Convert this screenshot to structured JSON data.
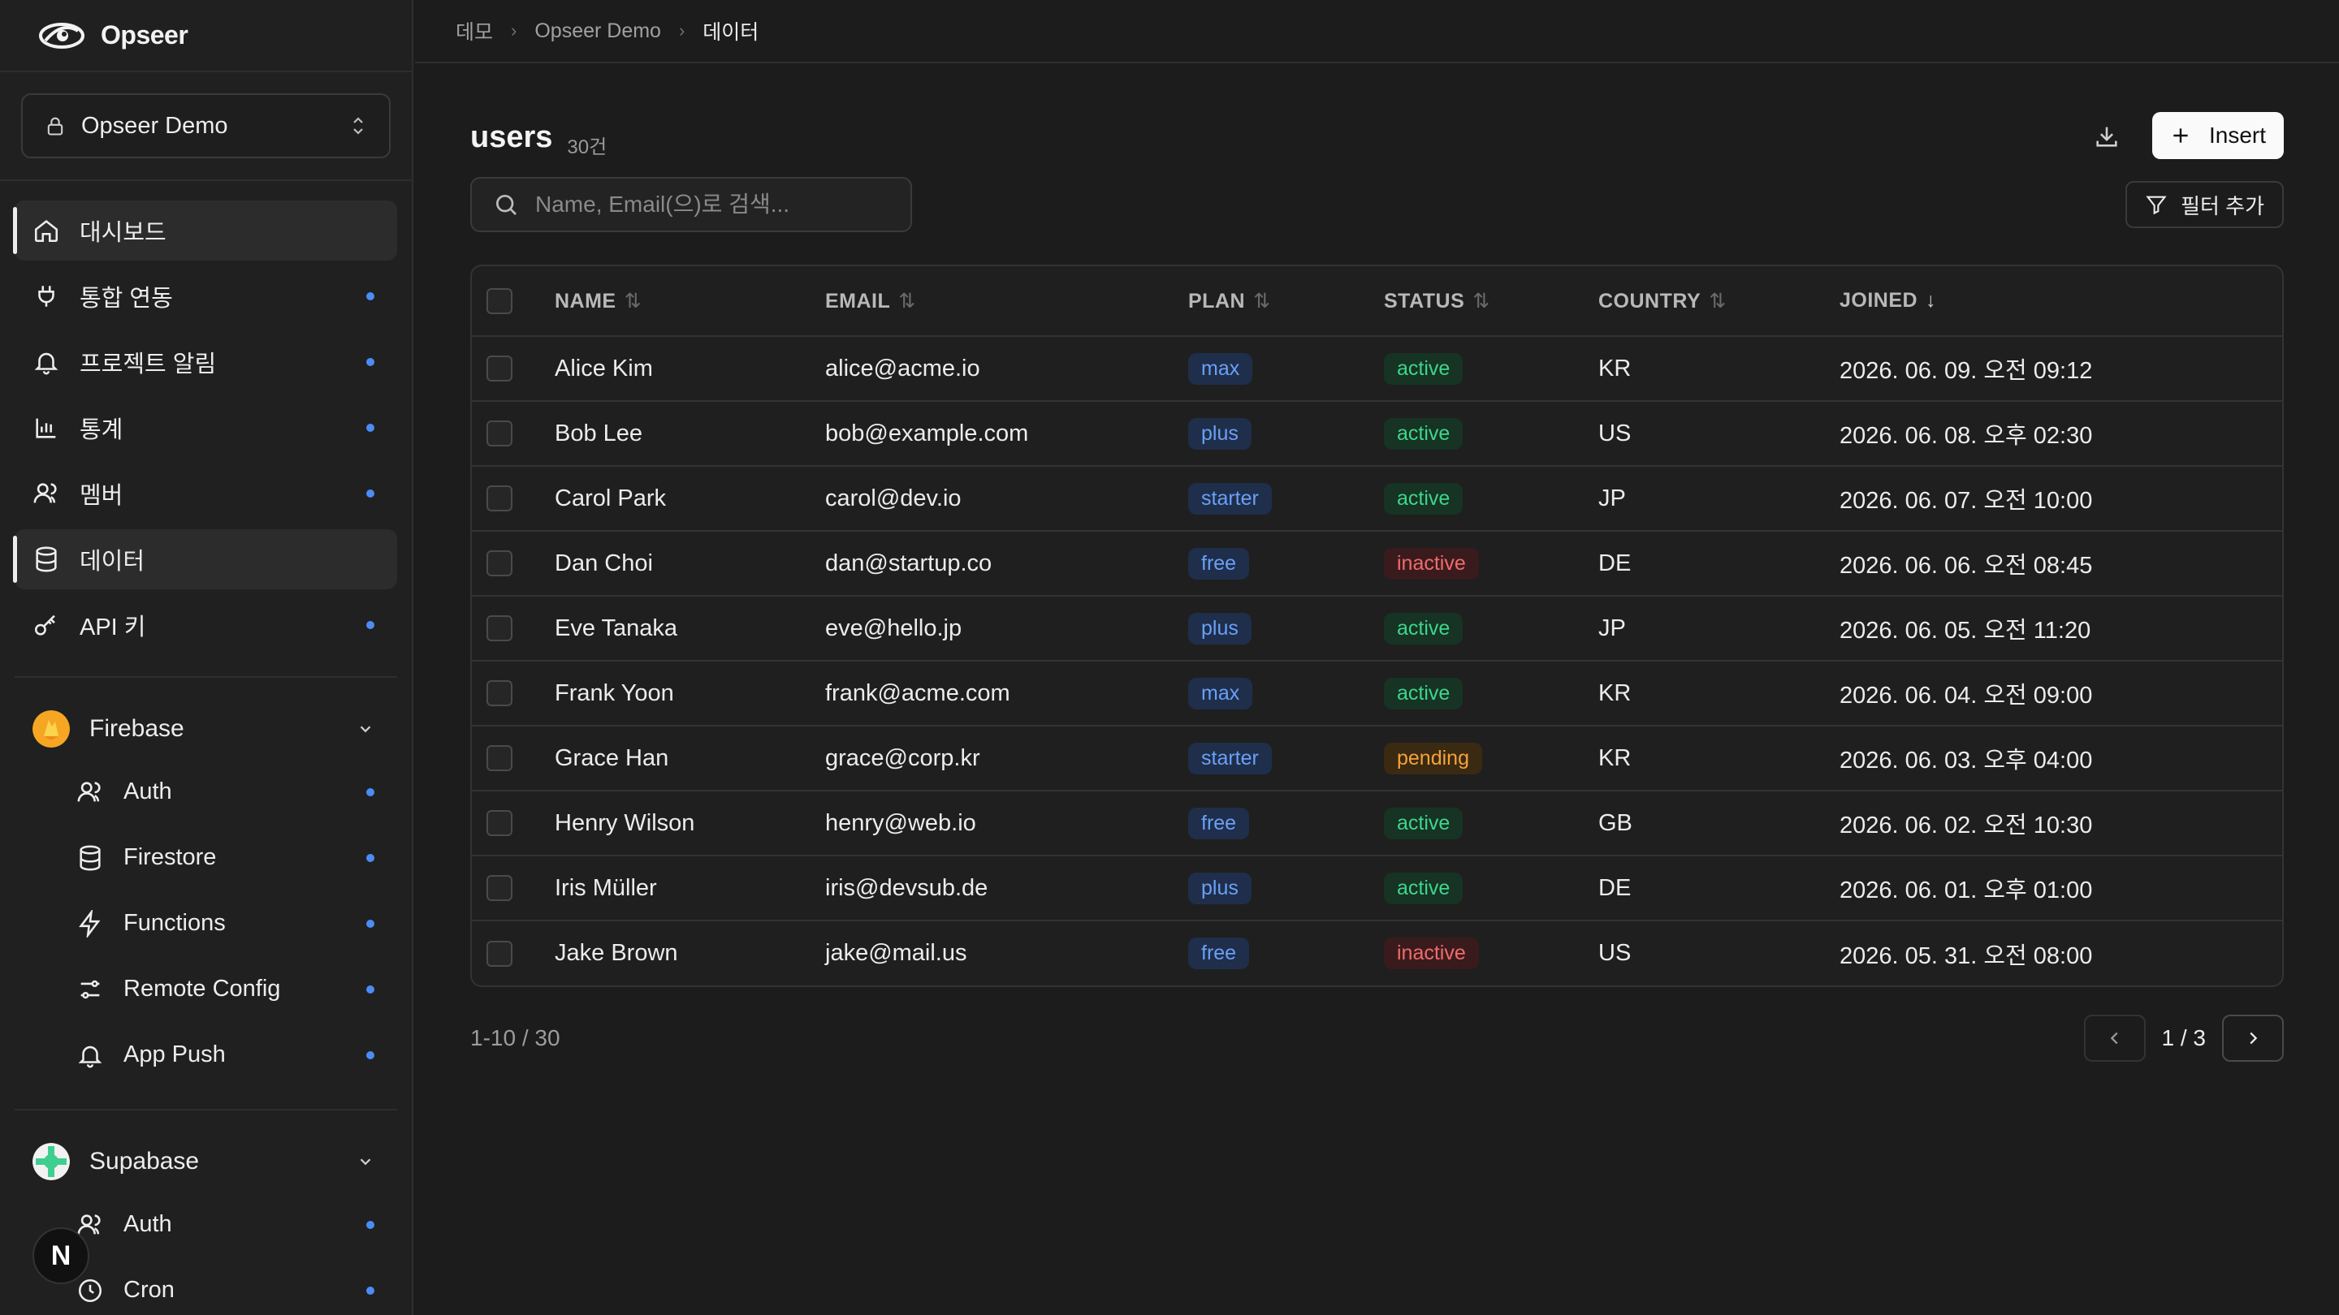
{
  "brand": {
    "name": "Opseer"
  },
  "project": {
    "name": "Opseer Demo"
  },
  "nav": [
    {
      "label": "대시보드",
      "active": true
    },
    {
      "label": "통합 연동"
    },
    {
      "label": "프로젝트 알림"
    },
    {
      "label": "통계"
    },
    {
      "label": "멤버"
    },
    {
      "label": "데이터",
      "active": true
    },
    {
      "label": "API 키"
    }
  ],
  "firebase": {
    "label": "Firebase",
    "items": [
      {
        "label": "Auth"
      },
      {
        "label": "Firestore"
      },
      {
        "label": "Functions"
      },
      {
        "label": "Remote Config"
      },
      {
        "label": "App Push"
      }
    ]
  },
  "supabase": {
    "label": "Supabase",
    "items": [
      {
        "label": "Auth"
      },
      {
        "label": "Cron"
      }
    ]
  },
  "floating_badge": "N",
  "breadcrumb": [
    "데모",
    "Opseer Demo",
    "데이터"
  ],
  "table_title": "users",
  "table_count": "30건",
  "insert_label": "Insert",
  "search": {
    "placeholder": "Name, Email(으)로 검색..."
  },
  "filter_label": "필터 추가",
  "columns": {
    "name": "NAME",
    "email": "EMAIL",
    "plan": "PLAN",
    "status": "STATUS",
    "country": "COUNTRY",
    "joined": "JOINED"
  },
  "rows": [
    {
      "name": "Alice Kim",
      "email": "alice@acme.io",
      "plan": "max",
      "status": "active",
      "country": "KR",
      "joined": "2026. 06. 09. 오전 09:12"
    },
    {
      "name": "Bob Lee",
      "email": "bob@example.com",
      "plan": "plus",
      "status": "active",
      "country": "US",
      "joined": "2026. 06. 08. 오후 02:30"
    },
    {
      "name": "Carol Park",
      "email": "carol@dev.io",
      "plan": "starter",
      "status": "active",
      "country": "JP",
      "joined": "2026. 06. 07. 오전 10:00"
    },
    {
      "name": "Dan Choi",
      "email": "dan@startup.co",
      "plan": "free",
      "status": "inactive",
      "country": "DE",
      "joined": "2026. 06. 06. 오전 08:45"
    },
    {
      "name": "Eve Tanaka",
      "email": "eve@hello.jp",
      "plan": "plus",
      "status": "active",
      "country": "JP",
      "joined": "2026. 06. 05. 오전 11:20"
    },
    {
      "name": "Frank Yoon",
      "email": "frank@acme.com",
      "plan": "max",
      "status": "active",
      "country": "KR",
      "joined": "2026. 06. 04. 오전 09:00"
    },
    {
      "name": "Grace Han",
      "email": "grace@corp.kr",
      "plan": "starter",
      "status": "pending",
      "country": "KR",
      "joined": "2026. 06. 03. 오후 04:00"
    },
    {
      "name": "Henry Wilson",
      "email": "henry@web.io",
      "plan": "free",
      "status": "active",
      "country": "GB",
      "joined": "2026. 06. 02. 오전 10:30"
    },
    {
      "name": "Iris Müller",
      "email": "iris@devsub.de",
      "plan": "plus",
      "status": "active",
      "country": "DE",
      "joined": "2026. 06. 01. 오후 01:00"
    },
    {
      "name": "Jake Brown",
      "email": "jake@mail.us",
      "plan": "free",
      "status": "inactive",
      "country": "US",
      "joined": "2026. 05. 31. 오전 08:00"
    }
  ],
  "pagination": {
    "range": "1-10 / 30",
    "page": "1 / 3"
  },
  "colors": {
    "accent_dot": "#4b8cf5",
    "active": "#3dd68c",
    "inactive": "#f06b6b",
    "pending": "#f5a23a",
    "plan": "#6aa0f7"
  }
}
